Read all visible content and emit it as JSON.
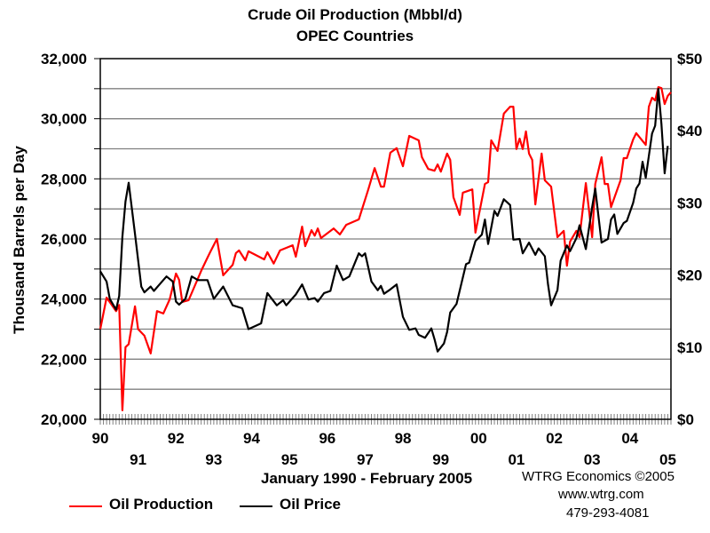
{
  "chart_data": {
    "type": "line",
    "title": "Crude Oil Production (Mbbl/d)",
    "subtitle": "OPEC Countries",
    "xlabel": "January 1990 - February 2005",
    "ylabel": "Thousand Barrels per Day",
    "y2label": "",
    "xlim": [
      "1990-01",
      "2005-02"
    ],
    "ylim": [
      20000,
      32000
    ],
    "y2lim": [
      0,
      50
    ],
    "grid": true,
    "legend_placement": "bottom-left",
    "y_ticks": [
      "20,000",
      "22,000",
      "24,000",
      "26,000",
      "28,000",
      "30,000",
      "32,000"
    ],
    "y2_ticks": [
      "$0",
      "$10",
      "$20",
      "$30",
      "$40",
      "$50"
    ],
    "x_ticks": [
      "90",
      "91",
      "92",
      "93",
      "94",
      "95",
      "96",
      "97",
      "98",
      "99",
      "00",
      "01",
      "02",
      "03",
      "04",
      "05"
    ],
    "series": [
      {
        "name": "Oil Production",
        "axis": "left",
        "color": "#ff0000",
        "points": [
          [
            "1990-01",
            23000
          ],
          [
            "1990-03",
            24050
          ],
          [
            "1990-06",
            23600
          ],
          [
            "1990-07",
            23800
          ],
          [
            "1990-08",
            20300
          ],
          [
            "1990-09",
            22400
          ],
          [
            "1990-10",
            22500
          ],
          [
            "1990-12",
            23760
          ],
          [
            "1991-01",
            23000
          ],
          [
            "1991-03",
            22780
          ],
          [
            "1991-05",
            22190
          ],
          [
            "1991-07",
            23600
          ],
          [
            "1991-09",
            23520
          ],
          [
            "1991-11",
            23990
          ],
          [
            "1992-01",
            24850
          ],
          [
            "1992-02",
            24640
          ],
          [
            "1992-03",
            23900
          ],
          [
            "1992-05",
            23960
          ],
          [
            "1992-09",
            24940
          ],
          [
            "1992-11",
            25380
          ],
          [
            "1992-12",
            25590
          ],
          [
            "1993-02",
            26000
          ],
          [
            "1993-04",
            24790
          ],
          [
            "1993-07",
            25140
          ],
          [
            "1993-08",
            25530
          ],
          [
            "1993-09",
            25620
          ],
          [
            "1993-11",
            25290
          ],
          [
            "1993-12",
            25590
          ],
          [
            "1994-05",
            25320
          ],
          [
            "1994-06",
            25560
          ],
          [
            "1994-08",
            25180
          ],
          [
            "1994-10",
            25620
          ],
          [
            "1995-02",
            25790
          ],
          [
            "1995-03",
            25410
          ],
          [
            "1995-05",
            26410
          ],
          [
            "1995-06",
            25760
          ],
          [
            "1995-08",
            26290
          ],
          [
            "1995-09",
            26110
          ],
          [
            "1995-10",
            26350
          ],
          [
            "1995-11",
            26030
          ],
          [
            "1996-03",
            26350
          ],
          [
            "1996-05",
            26150
          ],
          [
            "1996-07",
            26470
          ],
          [
            "1996-11",
            26650
          ],
          [
            "1997-02",
            27650
          ],
          [
            "1997-04",
            28360
          ],
          [
            "1997-06",
            27740
          ],
          [
            "1997-07",
            27740
          ],
          [
            "1997-09",
            28870
          ],
          [
            "1997-11",
            29020
          ],
          [
            "1998-01",
            28420
          ],
          [
            "1998-03",
            29430
          ],
          [
            "1998-06",
            29280
          ],
          [
            "1998-07",
            28720
          ],
          [
            "1998-09",
            28330
          ],
          [
            "1998-11",
            28270
          ],
          [
            "1998-12",
            28480
          ],
          [
            "1999-01",
            28240
          ],
          [
            "1999-03",
            28840
          ],
          [
            "1999-04",
            28630
          ],
          [
            "1999-05",
            27390
          ],
          [
            "1999-07",
            26800
          ],
          [
            "1999-08",
            27540
          ],
          [
            "1999-11",
            27650
          ],
          [
            "1999-12",
            26210
          ],
          [
            "2000-03",
            27830
          ],
          [
            "2000-04",
            27890
          ],
          [
            "2000-05",
            29280
          ],
          [
            "2000-07",
            28930
          ],
          [
            "2000-09",
            30170
          ],
          [
            "2000-11",
            30400
          ],
          [
            "2000-12",
            30400
          ],
          [
            "2001-01",
            28990
          ],
          [
            "2001-02",
            29340
          ],
          [
            "2001-03",
            28990
          ],
          [
            "2001-04",
            29580
          ],
          [
            "2001-05",
            28840
          ],
          [
            "2001-06",
            28630
          ],
          [
            "2001-07",
            27150
          ],
          [
            "2001-09",
            28840
          ],
          [
            "2001-10",
            27950
          ],
          [
            "2001-12",
            27740
          ],
          [
            "2002-02",
            26060
          ],
          [
            "2002-04",
            26270
          ],
          [
            "2002-05",
            25110
          ],
          [
            "2002-06",
            25910
          ],
          [
            "2002-08",
            26270
          ],
          [
            "2002-09",
            26060
          ],
          [
            "2002-11",
            27860
          ],
          [
            "2003-01",
            26060
          ],
          [
            "2003-02",
            27830
          ],
          [
            "2003-04",
            28720
          ],
          [
            "2003-05",
            27830
          ],
          [
            "2003-06",
            27830
          ],
          [
            "2003-07",
            27060
          ],
          [
            "2003-10",
            27950
          ],
          [
            "2003-11",
            28690
          ],
          [
            "2003-12",
            28690
          ],
          [
            "2004-02",
            29310
          ],
          [
            "2004-03",
            29520
          ],
          [
            "2004-06",
            29130
          ],
          [
            "2004-07",
            30400
          ],
          [
            "2004-08",
            30700
          ],
          [
            "2004-09",
            30610
          ],
          [
            "2004-10",
            31050
          ],
          [
            "2004-11",
            31020
          ],
          [
            "2004-12",
            30490
          ],
          [
            "2005-01",
            30760
          ],
          [
            "2005-02",
            30880
          ]
        ]
      },
      {
        "name": "Oil Price",
        "axis": "right",
        "color": "#000000",
        "points": [
          [
            "1990-01",
            20.5
          ],
          [
            "1990-03",
            19.1
          ],
          [
            "1990-04",
            16.7
          ],
          [
            "1990-06",
            15.2
          ],
          [
            "1990-07",
            17.1
          ],
          [
            "1990-08",
            25.3
          ],
          [
            "1990-09",
            30.2
          ],
          [
            "1990-10",
            32.8
          ],
          [
            "1990-12",
            25.7
          ],
          [
            "1991-02",
            18.4
          ],
          [
            "1991-03",
            17.6
          ],
          [
            "1991-05",
            18.4
          ],
          [
            "1991-06",
            17.8
          ],
          [
            "1991-08",
            18.8
          ],
          [
            "1991-10",
            19.8
          ],
          [
            "1991-12",
            19.1
          ],
          [
            "1992-01",
            16.3
          ],
          [
            "1992-02",
            15.9
          ],
          [
            "1992-04",
            16.7
          ],
          [
            "1992-06",
            19.8
          ],
          [
            "1992-08",
            19.3
          ],
          [
            "1992-11",
            19.3
          ],
          [
            "1993-01",
            16.7
          ],
          [
            "1993-04",
            18.4
          ],
          [
            "1993-07",
            15.8
          ],
          [
            "1993-10",
            15.4
          ],
          [
            "1993-12",
            12.5
          ],
          [
            "1994-04",
            13.3
          ],
          [
            "1994-06",
            17.5
          ],
          [
            "1994-09",
            15.8
          ],
          [
            "1994-11",
            16.5
          ],
          [
            "1994-12",
            15.8
          ],
          [
            "1995-03",
            17.3
          ],
          [
            "1995-05",
            18.7
          ],
          [
            "1995-07",
            16.6
          ],
          [
            "1995-09",
            16.8
          ],
          [
            "1995-10",
            16.3
          ],
          [
            "1995-12",
            17.5
          ],
          [
            "1996-02",
            17.8
          ],
          [
            "1996-04",
            21.3
          ],
          [
            "1996-06",
            19.3
          ],
          [
            "1996-08",
            19.8
          ],
          [
            "1996-11",
            23.0
          ],
          [
            "1996-12",
            22.6
          ],
          [
            "1997-01",
            23.0
          ],
          [
            "1997-03",
            19.1
          ],
          [
            "1997-05",
            17.9
          ],
          [
            "1997-06",
            18.5
          ],
          [
            "1997-07",
            17.4
          ],
          [
            "1997-09",
            18.0
          ],
          [
            "1997-11",
            18.7
          ],
          [
            "1998-01",
            14.2
          ],
          [
            "1998-03",
            12.4
          ],
          [
            "1998-05",
            12.6
          ],
          [
            "1998-06",
            11.7
          ],
          [
            "1998-08",
            11.3
          ],
          [
            "1998-10",
            12.6
          ],
          [
            "1998-11",
            11.1
          ],
          [
            "1998-12",
            9.4
          ],
          [
            "1999-02",
            10.5
          ],
          [
            "1999-03",
            12.1
          ],
          [
            "1999-04",
            14.8
          ],
          [
            "1999-06",
            16.0
          ],
          [
            "1999-09",
            21.5
          ],
          [
            "1999-10",
            21.7
          ],
          [
            "1999-12",
            24.7
          ],
          [
            "2000-02",
            25.6
          ],
          [
            "2000-03",
            27.7
          ],
          [
            "2000-04",
            24.3
          ],
          [
            "2000-06",
            28.9
          ],
          [
            "2000-07",
            28.2
          ],
          [
            "2000-09",
            30.5
          ],
          [
            "2000-11",
            29.7
          ],
          [
            "2000-12",
            24.9
          ],
          [
            "2001-02",
            25.0
          ],
          [
            "2001-03",
            23.0
          ],
          [
            "2001-05",
            24.5
          ],
          [
            "2001-07",
            22.8
          ],
          [
            "2001-08",
            23.7
          ],
          [
            "2001-10",
            22.6
          ],
          [
            "2001-11",
            18.7
          ],
          [
            "2001-12",
            15.8
          ],
          [
            "2002-02",
            17.9
          ],
          [
            "2002-03",
            22.0
          ],
          [
            "2002-05",
            24.1
          ],
          [
            "2002-06",
            23.3
          ],
          [
            "2002-08",
            25.1
          ],
          [
            "2002-09",
            26.9
          ],
          [
            "2002-11",
            23.6
          ],
          [
            "2003-01",
            29.4
          ],
          [
            "2003-02",
            32.0
          ],
          [
            "2003-04",
            24.5
          ],
          [
            "2003-06",
            25.0
          ],
          [
            "2003-07",
            27.7
          ],
          [
            "2003-08",
            28.4
          ],
          [
            "2003-09",
            25.7
          ],
          [
            "2003-11",
            27.2
          ],
          [
            "2003-12",
            27.5
          ],
          [
            "2004-02",
            30.0
          ],
          [
            "2004-03",
            32.0
          ],
          [
            "2004-04",
            32.7
          ],
          [
            "2004-05",
            35.7
          ],
          [
            "2004-06",
            33.5
          ],
          [
            "2004-08",
            39.6
          ],
          [
            "2004-09",
            40.7
          ],
          [
            "2004-10",
            45.8
          ],
          [
            "2004-11",
            40.9
          ],
          [
            "2004-12",
            34.1
          ],
          [
            "2005-01",
            37.9
          ]
        ]
      }
    ]
  },
  "credits": {
    "line1": "WTRG Economics  ©2005",
    "line2": "www.wtrg.com",
    "line3": "479-293-4081"
  }
}
